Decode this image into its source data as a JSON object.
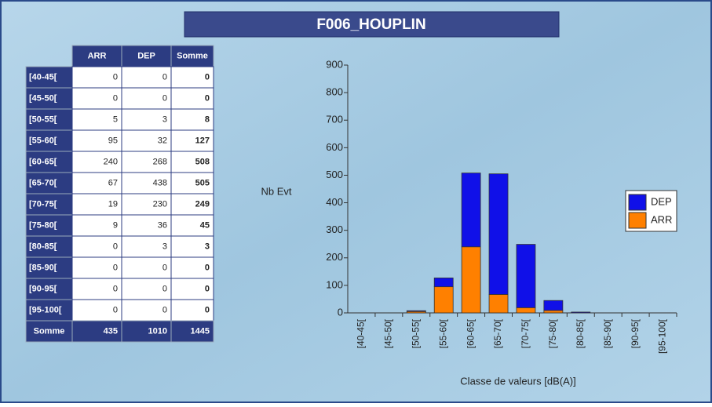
{
  "title": "F006_HOUPLIN",
  "table": {
    "columns": [
      "ARR",
      "DEP",
      "Somme"
    ],
    "rows": [
      {
        "label": "[40-45[",
        "values": [
          0,
          0,
          0
        ]
      },
      {
        "label": "[45-50[",
        "values": [
          0,
          0,
          0
        ]
      },
      {
        "label": "[50-55[",
        "values": [
          5,
          3,
          8
        ]
      },
      {
        "label": "[55-60[",
        "values": [
          95,
          32,
          127
        ]
      },
      {
        "label": "[60-65[",
        "values": [
          240,
          268,
          508
        ]
      },
      {
        "label": "[65-70[",
        "values": [
          67,
          438,
          505
        ]
      },
      {
        "label": "[70-75[",
        "values": [
          19,
          230,
          249
        ]
      },
      {
        "label": "[75-80[",
        "values": [
          9,
          36,
          45
        ]
      },
      {
        "label": "[80-85[",
        "values": [
          0,
          3,
          3
        ]
      },
      {
        "label": "[85-90[",
        "values": [
          0,
          0,
          0
        ]
      },
      {
        "label": "[90-95[",
        "values": [
          0,
          0,
          0
        ]
      },
      {
        "label": "[95-100[",
        "values": [
          0,
          0,
          0
        ]
      }
    ],
    "footer": {
      "label": "Somme",
      "values": [
        435,
        1010,
        1445
      ]
    }
  },
  "chart_data": {
    "type": "bar",
    "stacked": true,
    "ylabel": "Nb Evt",
    "xlabel": "Classe de valeurs [dB(A)]",
    "categories": [
      "[40-45[",
      "[45-50[",
      "[50-55[",
      "[55-60[",
      "[60-65[",
      "[65-70[",
      "[70-75[",
      "[75-80[",
      "[80-85[",
      "[85-90[",
      "[90-95[",
      "[95-100["
    ],
    "series": [
      {
        "name": "ARR",
        "color": "#ff8000",
        "values": [
          0,
          0,
          5,
          95,
          240,
          67,
          19,
          9,
          0,
          0,
          0,
          0
        ]
      },
      {
        "name": "DEP",
        "color": "#1010e8",
        "values": [
          0,
          0,
          3,
          32,
          268,
          438,
          230,
          36,
          3,
          0,
          0,
          0
        ]
      }
    ],
    "ylim": [
      0,
      900
    ],
    "yticks": [
      0,
      100,
      200,
      300,
      400,
      500,
      600,
      700,
      800,
      900
    ],
    "legend": "right"
  }
}
